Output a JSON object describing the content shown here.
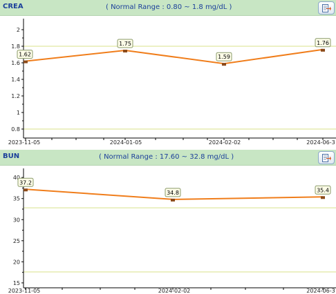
{
  "panels": [
    {
      "title": "CREA",
      "range_text": "( Normal Range : 0.80 ~ 1.8 mg/dL )",
      "export_icon": "export-icon"
    },
    {
      "title": "BUN",
      "range_text": "( Normal Range : 17.60 ~ 32.8 mg/dL )",
      "export_icon": "export-icon"
    }
  ],
  "colors": {
    "header_bg": "#c8e6c4",
    "header_text": "#1b3f9a",
    "line": "#f07d1a",
    "normal_limit": "#d8e08a"
  },
  "chart_data": [
    {
      "type": "line",
      "name": "CREA",
      "x": [
        "2023-11-05",
        "2024-01-05",
        "2024-02-02",
        "2024-06-3"
      ],
      "y": [
        1.62,
        1.75,
        1.59,
        1.76
      ],
      "data_labels": [
        "1.62",
        "1.75",
        "1.59",
        "1.76"
      ],
      "x_tick_labels": [
        "2023-11-05",
        "2024-01-05",
        "2024-02-02",
        "2024-06-3"
      ],
      "y_ticks": [
        "0.8",
        "1",
        "1.2",
        "1.4",
        "1.6",
        "1.8",
        "2"
      ],
      "normal_low": 0.8,
      "normal_high": 1.8,
      "ylim": [
        0.7,
        2.1
      ],
      "grid": false
    },
    {
      "type": "line",
      "name": "BUN",
      "x": [
        "2023-11-05",
        "2024-02-02",
        "2024-06-3"
      ],
      "y": [
        37.2,
        34.8,
        35.4
      ],
      "data_labels": [
        "37.2",
        "34.8",
        "35.4"
      ],
      "x_tick_labels": [
        "2023-11-05",
        "2024-02-02",
        "2024-06-3"
      ],
      "y_ticks": [
        "15",
        "20",
        "25",
        "30",
        "35",
        "40"
      ],
      "normal_low": 17.6,
      "normal_high": 32.8,
      "ylim": [
        14,
        41.5
      ],
      "grid": false
    }
  ]
}
